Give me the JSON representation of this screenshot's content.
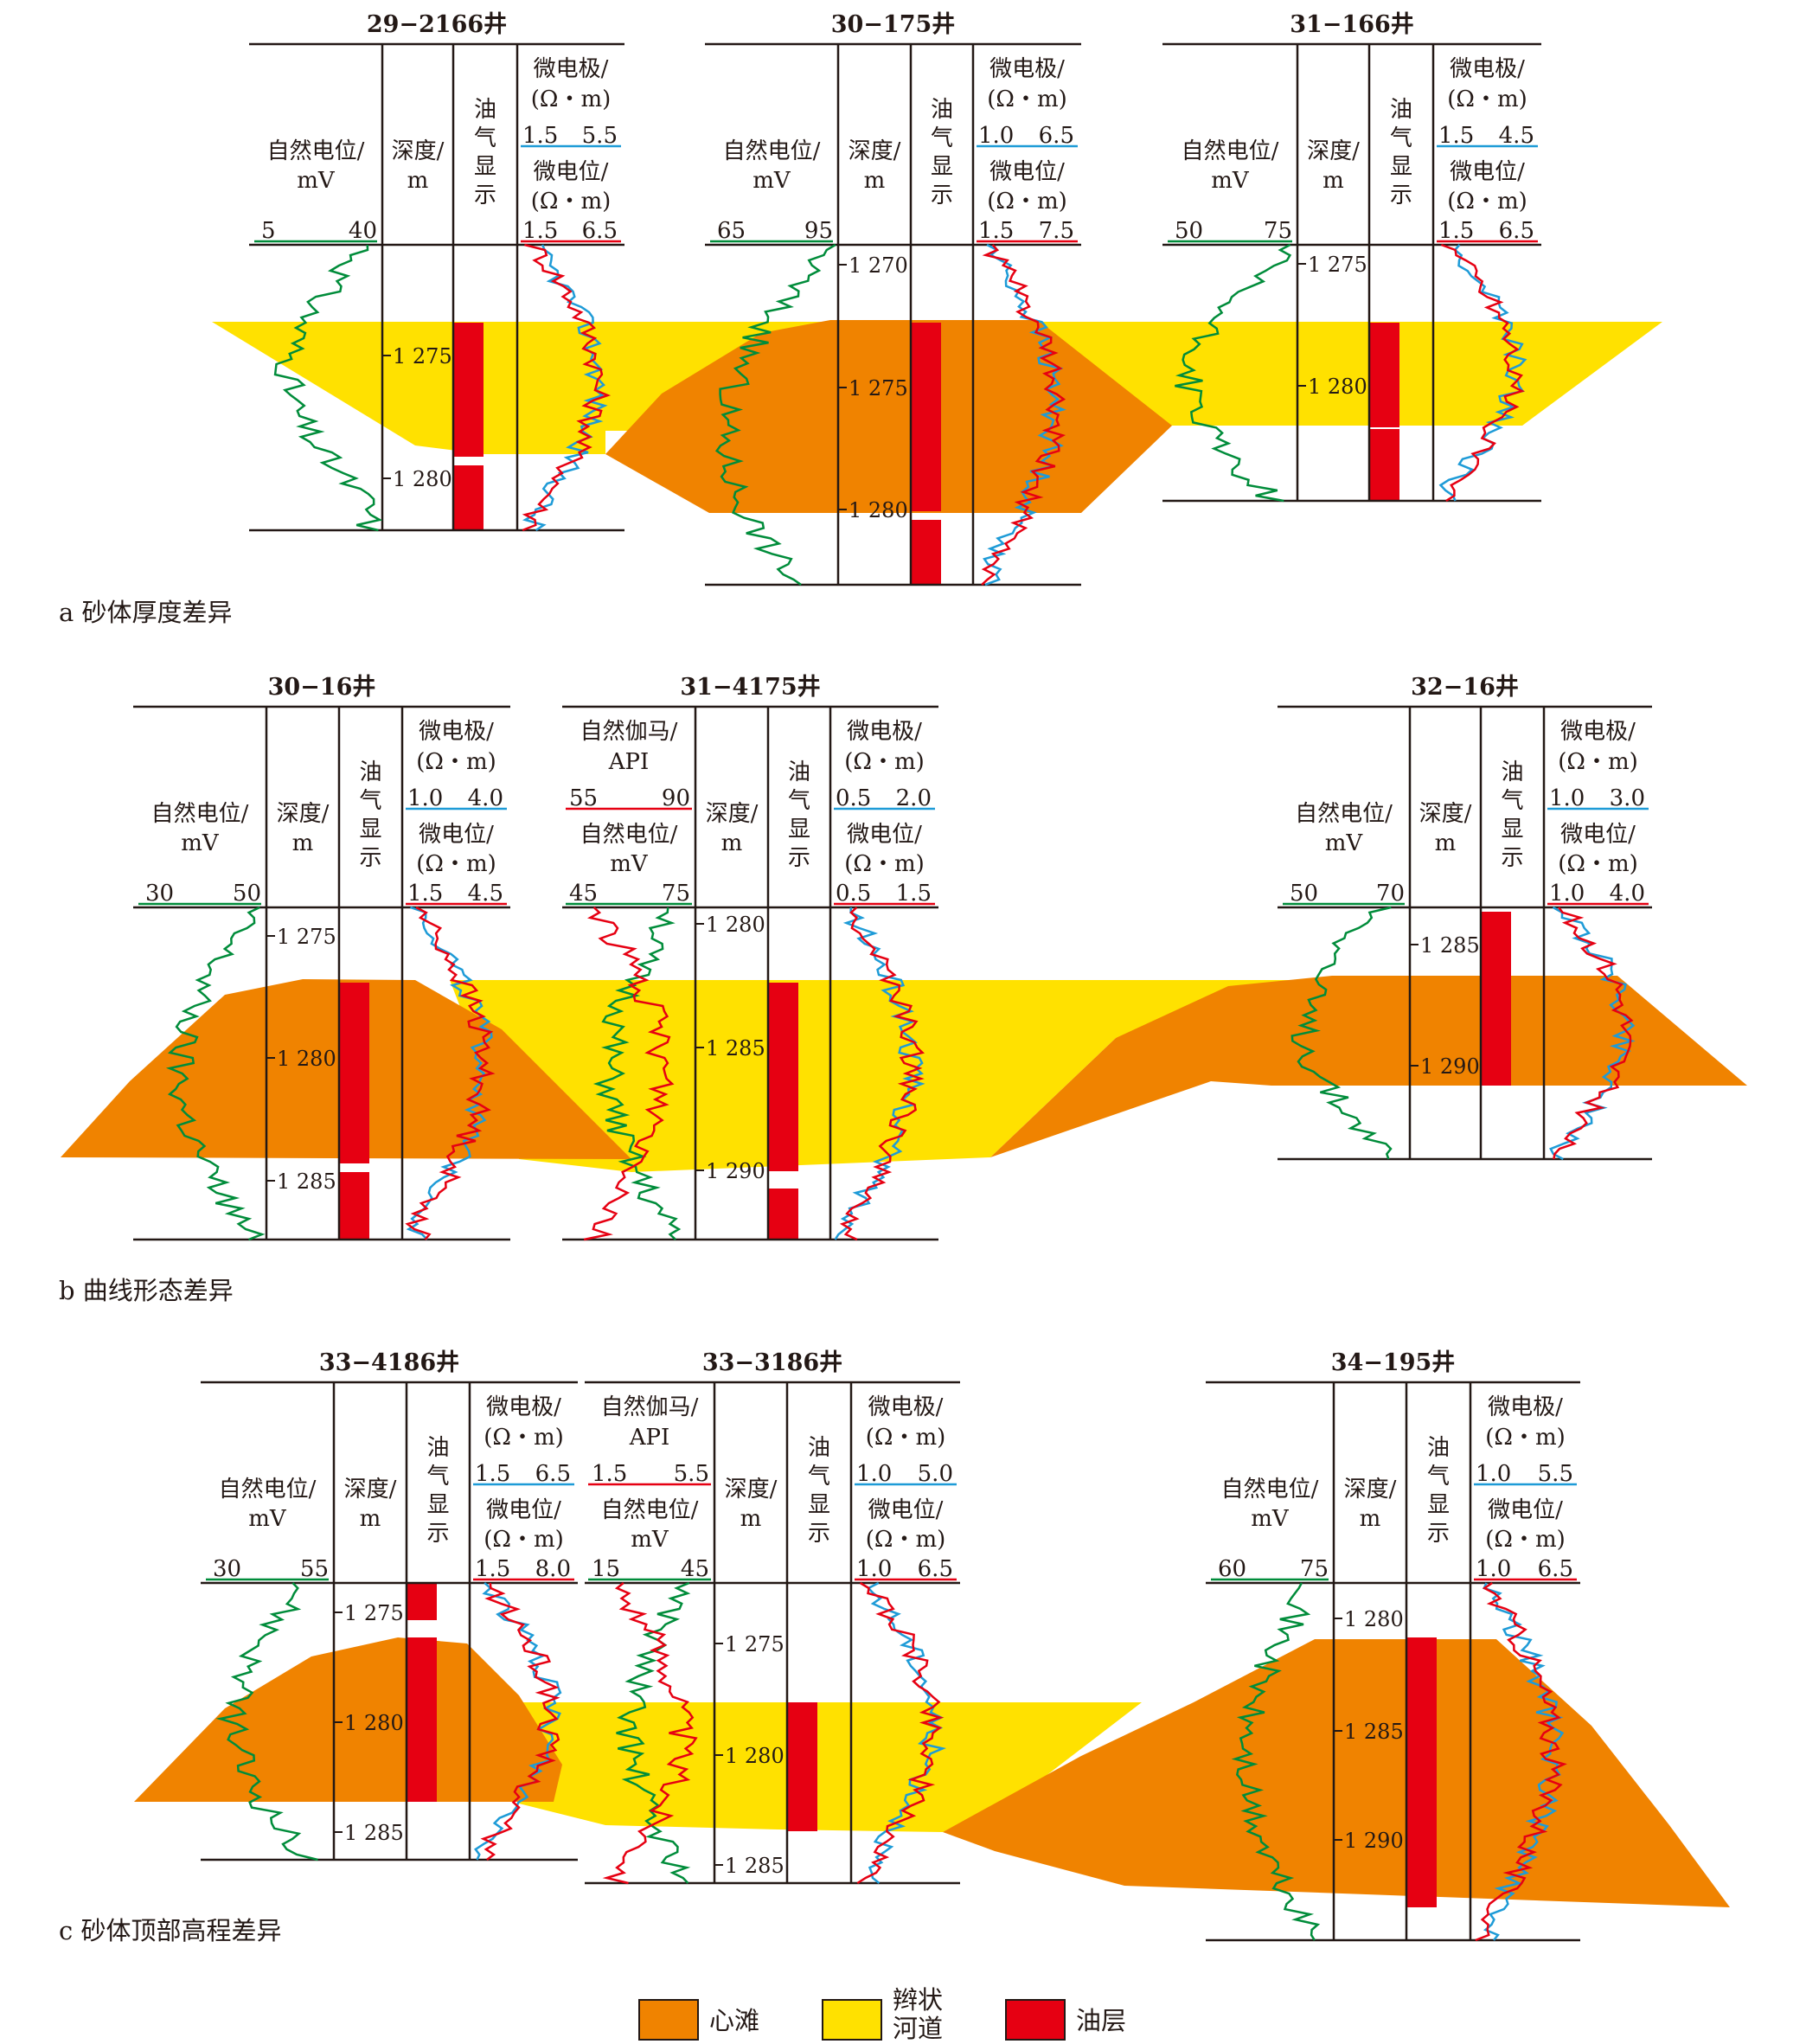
{
  "colors": {
    "center_bar": "#F08300",
    "braided_channel": "#FFE100",
    "oil_layer": "#E60012",
    "sp_curve": "#008C3A",
    "micro_electrode": "#1E9BD7",
    "micro_potential": "#E60012",
    "gamma_curve": "#E60012",
    "ink": "#231815"
  },
  "header": {
    "sp": "自然电位/",
    "mv": "mV",
    "depth": "深度/",
    "m": "m",
    "oil1": "油",
    "oil2": "气",
    "oil3": "显",
    "oil4": "示",
    "me": "微电极/",
    "pot": "微电位/",
    "ohm": "(Ω・m)",
    "gr": "自然伽马/",
    "api": "API"
  },
  "panels": [
    {
      "caption": "a 砂体厚度差异",
      "wells": [
        {
          "name": "29−2166井",
          "sp_range": [
            "5",
            "40"
          ],
          "me_range": [
            "1.5",
            "5.5"
          ],
          "mp_range": [
            "1.5",
            "6.5"
          ],
          "depths": [
            "1 275",
            "1 280"
          ]
        },
        {
          "name": "30−175井",
          "sp_range": [
            "65",
            "95"
          ],
          "me_range": [
            "1.0",
            "6.5"
          ],
          "mp_range": [
            "1.5",
            "7.5"
          ],
          "depths": [
            "1 270",
            "1 275",
            "1 280"
          ]
        },
        {
          "name": "31−166井",
          "sp_range": [
            "50",
            "75"
          ],
          "me_range": [
            "1.5",
            "4.5"
          ],
          "mp_range": [
            "1.5",
            "6.5"
          ],
          "depths": [
            "1 275",
            "1 280"
          ]
        }
      ]
    },
    {
      "caption": "b 曲线形态差异",
      "wells": [
        {
          "name": "30−16井",
          "sp_range": [
            "30",
            "50"
          ],
          "me_range": [
            "1.0",
            "4.0"
          ],
          "mp_range": [
            "1.5",
            "4.5"
          ],
          "depths": [
            "1 275",
            "1 280",
            "1 285"
          ]
        },
        {
          "name": "31−4175井",
          "gr_range": [
            "55",
            "90"
          ],
          "sp_range": [
            "45",
            "75"
          ],
          "me_range": [
            "0.5",
            "2.0"
          ],
          "mp_range": [
            "0.5",
            "1.5"
          ],
          "depths": [
            "1 280",
            "1 285",
            "1 290"
          ]
        },
        {
          "name": "32−16井",
          "sp_range": [
            "50",
            "70"
          ],
          "me_range": [
            "1.0",
            "3.0"
          ],
          "mp_range": [
            "1.0",
            "4.0"
          ],
          "depths": [
            "1 285",
            "1 290"
          ]
        }
      ]
    },
    {
      "caption": "c 砂体顶部高程差异",
      "wells": [
        {
          "name": "33−4186井",
          "sp_range": [
            "30",
            "55"
          ],
          "me_range": [
            "1.5",
            "6.5"
          ],
          "mp_range": [
            "1.5",
            "8.0"
          ],
          "depths": [
            "1 275",
            "1 280",
            "1 285"
          ]
        },
        {
          "name": "33−3186井",
          "gr_range": [
            "1.5",
            "5.5"
          ],
          "sp_range": [
            "15",
            "45"
          ],
          "me_range": [
            "1.0",
            "5.0"
          ],
          "mp_range": [
            "1.0",
            "6.5"
          ],
          "depths": [
            "1 275",
            "1 280",
            "1 285"
          ]
        },
        {
          "name": "34−195井",
          "sp_range": [
            "60",
            "75"
          ],
          "me_range": [
            "1.0",
            "5.5"
          ],
          "mp_range": [
            "1.0",
            "6.5"
          ],
          "depths": [
            "1 280",
            "1 285",
            "1 290"
          ]
        }
      ]
    }
  ],
  "legend": {
    "center_bar": "心滩",
    "braided_1": "辫状",
    "braided_2": "河道",
    "oil_layer": "油层"
  }
}
